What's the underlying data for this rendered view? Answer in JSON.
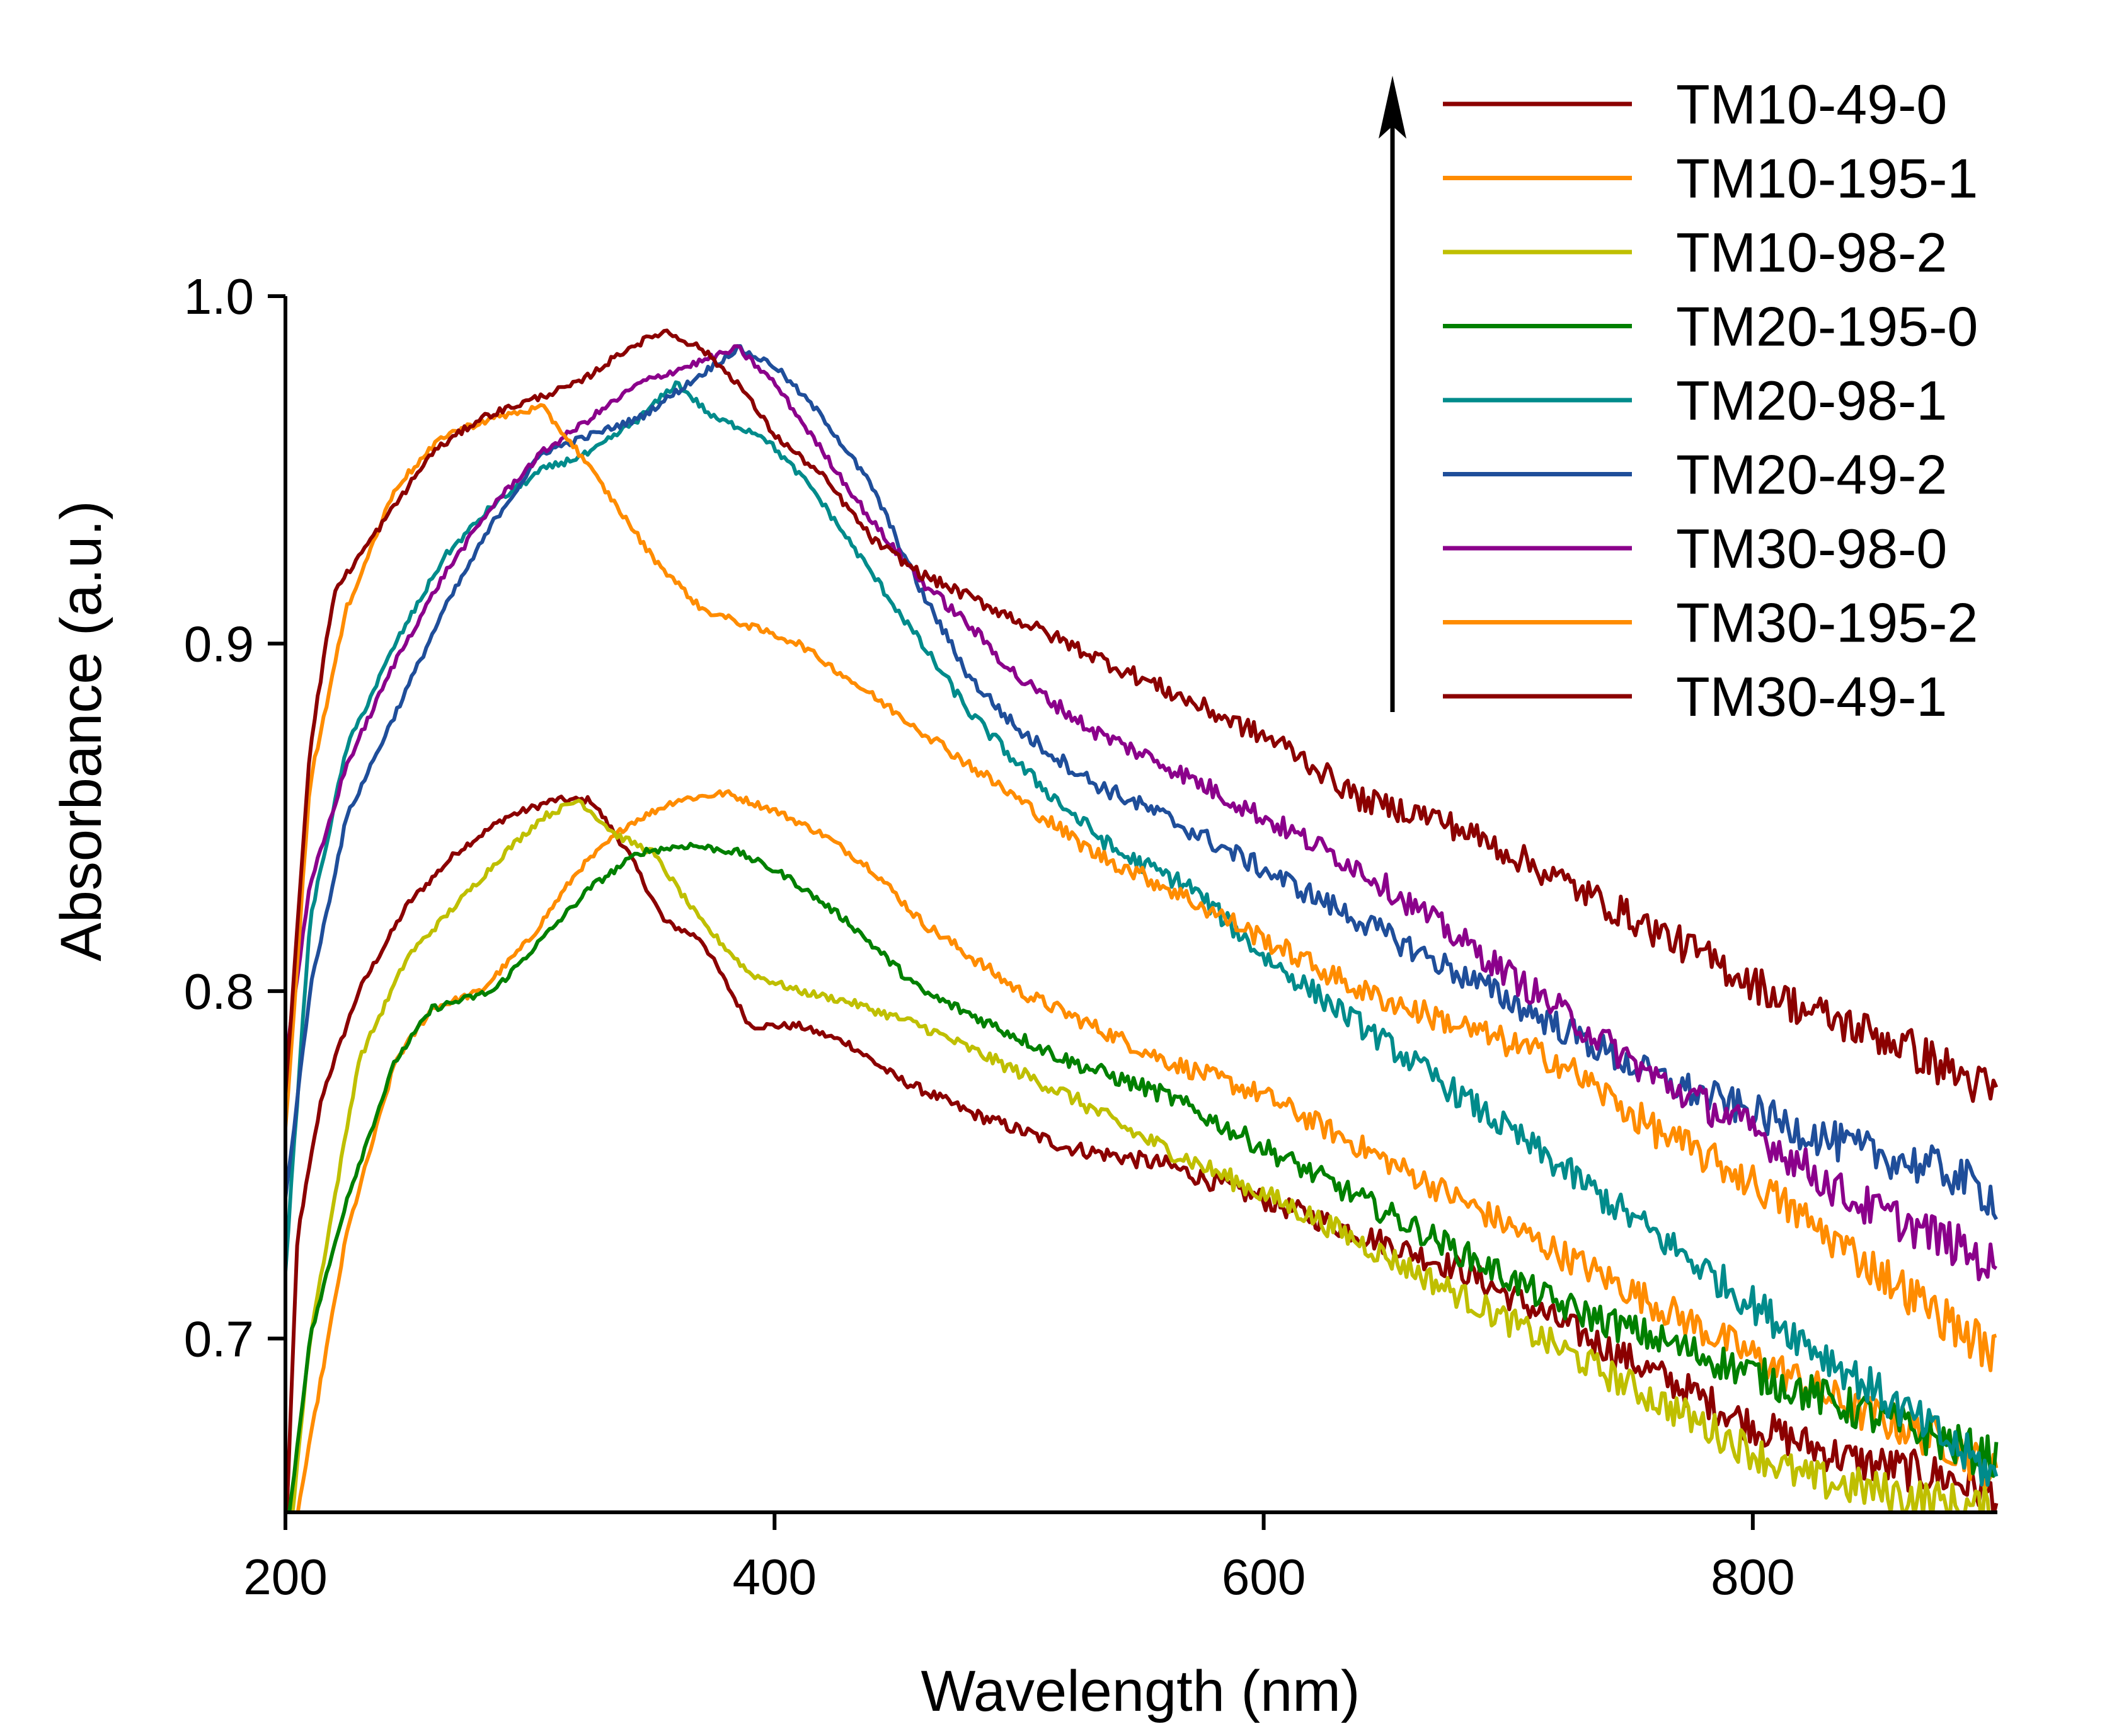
{
  "chart_data": {
    "type": "line",
    "title": "",
    "xlabel": "Wavelength (nm)",
    "ylabel": "Absorbance (a.u.)",
    "xlim": [
      200,
      900
    ],
    "ylim": [
      0.65,
      1.0
    ],
    "xticks": [
      200,
      400,
      600,
      800
    ],
    "xtick_labels": [
      "200",
      "400",
      "600",
      "800"
    ],
    "yticks": [
      0.7,
      0.8,
      0.9,
      1.0
    ],
    "ytick_labels": [
      "0.7",
      "0.8",
      "0.9",
      "1.0"
    ],
    "grid": false,
    "legend_position": "top-right",
    "annotation": "upward arrow beside legend",
    "series": [
      {
        "name": "TM10-49-0",
        "color": "#8B0000",
        "points": [
          [
            200,
            0.64
          ],
          [
            205,
            0.73
          ],
          [
            215,
            0.77
          ],
          [
            230,
            0.8
          ],
          [
            250,
            0.825
          ],
          [
            270,
            0.84
          ],
          [
            290,
            0.85
          ],
          [
            310,
            0.855
          ],
          [
            325,
            0.855
          ],
          [
            340,
            0.84
          ],
          [
            355,
            0.82
          ],
          [
            370,
            0.815
          ],
          [
            390,
            0.79
          ],
          [
            410,
            0.79
          ],
          [
            430,
            0.785
          ],
          [
            450,
            0.775
          ],
          [
            480,
            0.765
          ],
          [
            520,
            0.755
          ],
          [
            560,
            0.75
          ],
          [
            600,
            0.74
          ],
          [
            640,
            0.73
          ],
          [
            680,
            0.72
          ],
          [
            720,
            0.705
          ],
          [
            760,
            0.69
          ],
          [
            800,
            0.675
          ],
          [
            840,
            0.665
          ],
          [
            880,
            0.66
          ],
          [
            900,
            0.655
          ]
        ]
      },
      {
        "name": "TM10-195-1",
        "color": "#FF8C00",
        "points": [
          [
            200,
            0.63
          ],
          [
            210,
            0.67
          ],
          [
            225,
            0.73
          ],
          [
            245,
            0.78
          ],
          [
            260,
            0.795
          ],
          [
            280,
            0.8
          ],
          [
            300,
            0.815
          ],
          [
            320,
            0.835
          ],
          [
            340,
            0.848
          ],
          [
            360,
            0.855
          ],
          [
            380,
            0.857
          ],
          [
            400,
            0.852
          ],
          [
            420,
            0.845
          ],
          [
            440,
            0.835
          ],
          [
            460,
            0.82
          ],
          [
            480,
            0.81
          ],
          [
            500,
            0.8
          ],
          [
            530,
            0.79
          ],
          [
            560,
            0.78
          ],
          [
            600,
            0.77
          ],
          [
            640,
            0.755
          ],
          [
            680,
            0.74
          ],
          [
            720,
            0.725
          ],
          [
            760,
            0.71
          ],
          [
            800,
            0.695
          ],
          [
            840,
            0.68
          ],
          [
            880,
            0.67
          ],
          [
            900,
            0.66
          ]
        ]
      },
      {
        "name": "TM10-98-2",
        "color": "#BFBF00",
        "points": [
          [
            200,
            0.63
          ],
          [
            210,
            0.7
          ],
          [
            230,
            0.78
          ],
          [
            250,
            0.81
          ],
          [
            270,
            0.825
          ],
          [
            290,
            0.84
          ],
          [
            305,
            0.85
          ],
          [
            320,
            0.855
          ],
          [
            335,
            0.845
          ],
          [
            350,
            0.84
          ],
          [
            370,
            0.82
          ],
          [
            390,
            0.805
          ],
          [
            410,
            0.8
          ],
          [
            430,
            0.797
          ],
          [
            460,
            0.79
          ],
          [
            490,
            0.78
          ],
          [
            520,
            0.77
          ],
          [
            550,
            0.758
          ],
          [
            580,
            0.748
          ],
          [
            620,
            0.735
          ],
          [
            660,
            0.72
          ],
          [
            700,
            0.705
          ],
          [
            740,
            0.69
          ],
          [
            780,
            0.675
          ],
          [
            820,
            0.66
          ],
          [
            860,
            0.655
          ],
          [
            900,
            0.65
          ]
        ]
      },
      {
        "name": "TM20-195-0",
        "color": "#008000",
        "points": [
          [
            200,
            0.64
          ],
          [
            210,
            0.7
          ],
          [
            225,
            0.74
          ],
          [
            245,
            0.78
          ],
          [
            260,
            0.795
          ],
          [
            285,
            0.8
          ],
          [
            305,
            0.815
          ],
          [
            325,
            0.83
          ],
          [
            345,
            0.84
          ],
          [
            365,
            0.842
          ],
          [
            385,
            0.84
          ],
          [
            405,
            0.833
          ],
          [
            430,
            0.82
          ],
          [
            460,
            0.8
          ],
          [
            490,
            0.79
          ],
          [
            520,
            0.78
          ],
          [
            560,
            0.77
          ],
          [
            600,
            0.755
          ],
          [
            640,
            0.74
          ],
          [
            680,
            0.725
          ],
          [
            720,
            0.71
          ],
          [
            760,
            0.7
          ],
          [
            800,
            0.69
          ],
          [
            840,
            0.68
          ],
          [
            880,
            0.67
          ],
          [
            900,
            0.665
          ]
        ]
      },
      {
        "name": "TM20-98-1",
        "color": "#008B8B",
        "points": [
          [
            200,
            0.72
          ],
          [
            210,
            0.82
          ],
          [
            225,
            0.87
          ],
          [
            245,
            0.9
          ],
          [
            265,
            0.925
          ],
          [
            285,
            0.94
          ],
          [
            305,
            0.95
          ],
          [
            325,
            0.955
          ],
          [
            345,
            0.965
          ],
          [
            360,
            0.975
          ],
          [
            375,
            0.965
          ],
          [
            395,
            0.96
          ],
          [
            415,
            0.945
          ],
          [
            440,
            0.92
          ],
          [
            460,
            0.9
          ],
          [
            480,
            0.88
          ],
          [
            500,
            0.865
          ],
          [
            520,
            0.852
          ],
          [
            540,
            0.84
          ],
          [
            570,
            0.83
          ],
          [
            600,
            0.81
          ],
          [
            640,
            0.79
          ],
          [
            680,
            0.77
          ],
          [
            720,
            0.75
          ],
          [
            760,
            0.73
          ],
          [
            800,
            0.71
          ],
          [
            840,
            0.69
          ],
          [
            880,
            0.67
          ],
          [
            900,
            0.66
          ]
        ]
      },
      {
        "name": "TM20-49-2",
        "color": "#1F4E9A",
        "points": [
          [
            200,
            0.74
          ],
          [
            210,
            0.8
          ],
          [
            225,
            0.85
          ],
          [
            245,
            0.88
          ],
          [
            265,
            0.91
          ],
          [
            285,
            0.935
          ],
          [
            305,
            0.955
          ],
          [
            325,
            0.96
          ],
          [
            345,
            0.965
          ],
          [
            365,
            0.975
          ],
          [
            385,
            0.985
          ],
          [
            400,
            0.98
          ],
          [
            420,
            0.965
          ],
          [
            440,
            0.945
          ],
          [
            460,
            0.915
          ],
          [
            480,
            0.89
          ],
          [
            500,
            0.875
          ],
          [
            530,
            0.86
          ],
          [
            560,
            0.85
          ],
          [
            600,
            0.835
          ],
          [
            640,
            0.82
          ],
          [
            680,
            0.805
          ],
          [
            720,
            0.79
          ],
          [
            760,
            0.775
          ],
          [
            800,
            0.765
          ],
          [
            840,
            0.755
          ],
          [
            880,
            0.748
          ],
          [
            900,
            0.74
          ]
        ]
      },
      {
        "name": "TM30-98-0",
        "color": "#8B008B",
        "points": [
          [
            200,
            0.78
          ],
          [
            210,
            0.83
          ],
          [
            225,
            0.865
          ],
          [
            245,
            0.895
          ],
          [
            265,
            0.92
          ],
          [
            285,
            0.94
          ],
          [
            305,
            0.955
          ],
          [
            325,
            0.965
          ],
          [
            345,
            0.975
          ],
          [
            365,
            0.98
          ],
          [
            385,
            0.985
          ],
          [
            400,
            0.975
          ],
          [
            420,
            0.955
          ],
          [
            440,
            0.935
          ],
          [
            460,
            0.918
          ],
          [
            480,
            0.905
          ],
          [
            500,
            0.89
          ],
          [
            530,
            0.875
          ],
          [
            560,
            0.865
          ],
          [
            600,
            0.85
          ],
          [
            640,
            0.835
          ],
          [
            680,
            0.815
          ],
          [
            720,
            0.795
          ],
          [
            760,
            0.775
          ],
          [
            800,
            0.76
          ],
          [
            840,
            0.74
          ],
          [
            880,
            0.728
          ],
          [
            900,
            0.72
          ]
        ]
      },
      {
        "name": "TM30-195-2",
        "color": "#FF8C00",
        "points": [
          [
            200,
            0.76
          ],
          [
            210,
            0.86
          ],
          [
            225,
            0.91
          ],
          [
            245,
            0.945
          ],
          [
            265,
            0.96
          ],
          [
            285,
            0.965
          ],
          [
            305,
            0.968
          ],
          [
            320,
            0.955
          ],
          [
            335,
            0.94
          ],
          [
            350,
            0.925
          ],
          [
            370,
            0.91
          ],
          [
            390,
            0.905
          ],
          [
            410,
            0.9
          ],
          [
            440,
            0.885
          ],
          [
            470,
            0.87
          ],
          [
            500,
            0.855
          ],
          [
            530,
            0.84
          ],
          [
            560,
            0.83
          ],
          [
            600,
            0.815
          ],
          [
            640,
            0.8
          ],
          [
            680,
            0.79
          ],
          [
            720,
            0.78
          ],
          [
            760,
            0.76
          ],
          [
            800,
            0.745
          ],
          [
            840,
            0.725
          ],
          [
            880,
            0.705
          ],
          [
            900,
            0.695
          ]
        ]
      },
      {
        "name": "TM30-49-1",
        "color": "#8B0000",
        "points": [
          [
            200,
            0.77
          ],
          [
            210,
            0.87
          ],
          [
            220,
            0.915
          ],
          [
            240,
            0.935
          ],
          [
            260,
            0.955
          ],
          [
            280,
            0.965
          ],
          [
            300,
            0.97
          ],
          [
            320,
            0.975
          ],
          [
            340,
            0.985
          ],
          [
            355,
            0.99
          ],
          [
            370,
            0.985
          ],
          [
            385,
            0.975
          ],
          [
            400,
            0.96
          ],
          [
            420,
            0.948
          ],
          [
            440,
            0.93
          ],
          [
            460,
            0.92
          ],
          [
            490,
            0.91
          ],
          [
            520,
            0.9
          ],
          [
            550,
            0.89
          ],
          [
            580,
            0.88
          ],
          [
            610,
            0.87
          ],
          [
            640,
            0.855
          ],
          [
            670,
            0.85
          ],
          [
            700,
            0.84
          ],
          [
            740,
            0.825
          ],
          [
            780,
            0.81
          ],
          [
            820,
            0.795
          ],
          [
            860,
            0.785
          ],
          [
            900,
            0.77
          ]
        ]
      }
    ]
  }
}
